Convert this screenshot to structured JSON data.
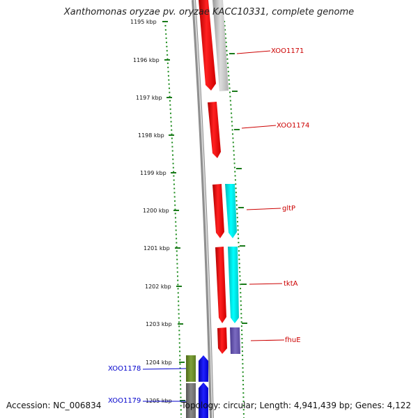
{
  "title": "Xanthomonas oryzae pv. oryzae KACC10331, complete genome",
  "footer": {
    "accession": "Accession: NC_006834",
    "summary": "Topology: circular; Length: 4,941,439 bp; Genes: 4,122"
  },
  "ticks": [
    "1195 kbp",
    "1196 kbp",
    "1197 kbp",
    "1198 kbp",
    "1199 kbp",
    "1200 kbp",
    "1201 kbp",
    "1202 kbp",
    "1203 kbp",
    "1204 kbp",
    "1205 kbp"
  ],
  "genes": [
    {
      "name": "XOO1171",
      "color": "#cc0000"
    },
    {
      "name": "XOO1174",
      "color": "#cc0000"
    },
    {
      "name": "gltP",
      "color": "#cc0000"
    },
    {
      "name": "tktA",
      "color": "#cc0000"
    },
    {
      "name": "fhuE",
      "color": "#cc0000"
    },
    {
      "name": "XOO1178",
      "color": "#0000cc"
    },
    {
      "name": "XOO1179",
      "color": "#0000cc"
    }
  ],
  "colors": {
    "forward_cds": "#ff0000",
    "forward_cds_grey": "#bbbbbb",
    "cyan_feature": "#00e5e5",
    "purple_feature": "#6a5ab0",
    "reverse_cds": "#0000ee",
    "olive_feature": "#6b8e23",
    "backbone": "#999999",
    "dotted_ring": "#1a8a1a",
    "forward_label": "#cc0000",
    "reverse_label": "#0000cc"
  }
}
